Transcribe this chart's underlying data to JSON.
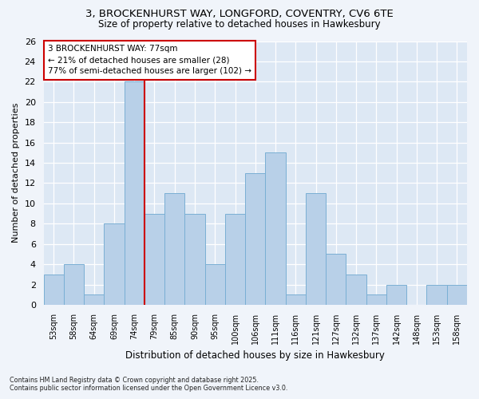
{
  "title_line1": "3, BROCKENHURST WAY, LONGFORD, COVENTRY, CV6 6TE",
  "title_line2": "Size of property relative to detached houses in Hawkesbury",
  "xlabel": "Distribution of detached houses by size in Hawkesbury",
  "ylabel": "Number of detached properties",
  "categories": [
    "53sqm",
    "58sqm",
    "64sqm",
    "69sqm",
    "74sqm",
    "79sqm",
    "85sqm",
    "90sqm",
    "95sqm",
    "100sqm",
    "106sqm",
    "111sqm",
    "116sqm",
    "121sqm",
    "127sqm",
    "132sqm",
    "137sqm",
    "142sqm",
    "148sqm",
    "153sqm",
    "158sqm"
  ],
  "values": [
    3,
    4,
    1,
    8,
    22,
    9,
    11,
    9,
    4,
    9,
    13,
    15,
    1,
    11,
    5,
    3,
    1,
    2,
    0,
    2,
    2
  ],
  "bar_color": "#b8d0e8",
  "bar_edge_color": "#7aafd4",
  "property_bar_index": 4,
  "annotation_text": "3 BROCKENHURST WAY: 77sqm\n← 21% of detached houses are smaller (28)\n77% of semi-detached houses are larger (102) →",
  "annotation_box_color": "white",
  "annotation_box_edge_color": "#cc0000",
  "vline_color": "#cc0000",
  "ylim": [
    0,
    26
  ],
  "yticks": [
    0,
    2,
    4,
    6,
    8,
    10,
    12,
    14,
    16,
    18,
    20,
    22,
    24,
    26
  ],
  "background_color": "#f0f4fa",
  "plot_background_color": "#dde8f4",
  "footer_line1": "Contains HM Land Registry data © Crown copyright and database right 2025.",
  "footer_line2": "Contains public sector information licensed under the Open Government Licence v3.0."
}
